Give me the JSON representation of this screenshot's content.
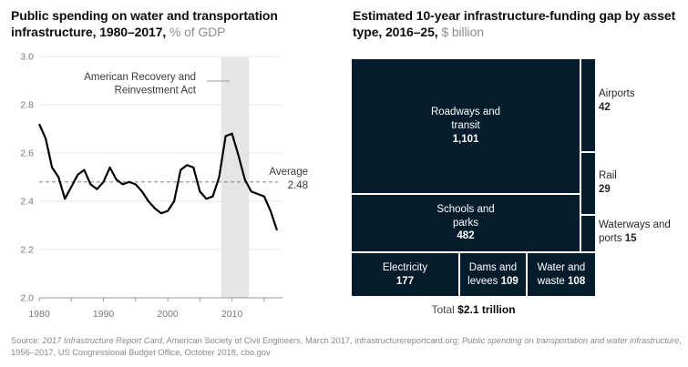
{
  "header": {
    "left_title_bold": "Public spending on water and transportation infrastructure, 1980–2017,",
    "left_title_unit": "% of GDP",
    "right_title_bold": "Estimated 10-year infrastructure-funding gap by asset type, 2016–25,",
    "right_title_unit": "$ billion"
  },
  "chart_data": [
    {
      "type": "line",
      "title": "Public spending on water and transportation infrastructure, 1980–2017",
      "unit": "% of GDP",
      "x": [
        1980,
        1981,
        1982,
        1983,
        1984,
        1985,
        1986,
        1987,
        1988,
        1989,
        1990,
        1991,
        1992,
        1993,
        1994,
        1995,
        1996,
        1997,
        1998,
        1999,
        2000,
        2001,
        2002,
        2003,
        2004,
        2005,
        2006,
        2007,
        2008,
        2009,
        2010,
        2011,
        2012,
        2013,
        2014,
        2015,
        2016,
        2017
      ],
      "values": [
        2.72,
        2.66,
        2.54,
        2.5,
        2.41,
        2.46,
        2.51,
        2.53,
        2.47,
        2.45,
        2.48,
        2.54,
        2.49,
        2.47,
        2.48,
        2.47,
        2.44,
        2.4,
        2.37,
        2.35,
        2.36,
        2.4,
        2.53,
        2.55,
        2.54,
        2.44,
        2.41,
        2.42,
        2.5,
        2.67,
        2.68,
        2.59,
        2.49,
        2.44,
        2.43,
        2.42,
        2.36,
        2.28
      ],
      "average": 2.48,
      "average_label": "Average",
      "annotation_lines": [
        "American Recovery and",
        "Reinvestment Act"
      ],
      "annotation_band_years": [
        2008.3,
        2012.65
      ],
      "ylim": [
        2.0,
        3.0
      ],
      "yticks": [
        3.0,
        2.8,
        2.6,
        2.4,
        2.2,
        2.0
      ],
      "xticks": [
        1980,
        1985,
        1990,
        1995,
        2000,
        2005,
        2010,
        2015
      ],
      "xtick_labels": [
        1980,
        1990,
        2000,
        2010
      ],
      "grid": true,
      "legend": "none",
      "line_color": "#000000",
      "band_color": "#e5e5e5",
      "average_line_color": "#8c8c8c"
    },
    {
      "type": "treemap",
      "title": "Estimated 10-year infrastructure-funding gap by asset type, 2016–25",
      "unit": "$ billion",
      "blocks": [
        {
          "label": "Roadways and transit",
          "value": "1,101",
          "label_placement": "inside"
        },
        {
          "label": "Schools and parks",
          "value": "482",
          "label_placement": "inside"
        },
        {
          "label": "Electricity",
          "value": "177",
          "label_placement": "inside"
        },
        {
          "label": "Dams and levees",
          "value": "109",
          "label_placement": "inside"
        },
        {
          "label": "Water and waste",
          "value": "108",
          "label_placement": "inside"
        },
        {
          "label": "Airports",
          "value": "42",
          "label_placement": "outside"
        },
        {
          "label": "Rail",
          "value": "29",
          "label_placement": "outside"
        },
        {
          "label": "Waterways and ports",
          "value": "15",
          "label_placement": "outside"
        }
      ],
      "total_label": "Total",
      "total_value": "$2.1 trillion",
      "block_color": "#051c2c",
      "block_text_color": "#ffffff"
    }
  ],
  "source": {
    "segments": [
      {
        "text": "Source: ",
        "italic": false
      },
      {
        "text": "2017 Infrastructure Report Card",
        "italic": true
      },
      {
        "text": ", American Society of Civil Engineers, March 2017, infrastructurereportcard.org; ",
        "italic": false
      },
      {
        "text": "Public spending on transportation and water infrastructure",
        "italic": true
      },
      {
        "text": ", 1956–2017, US Congressional Budget Office, October 2018, cbo.gov",
        "italic": false
      }
    ]
  }
}
